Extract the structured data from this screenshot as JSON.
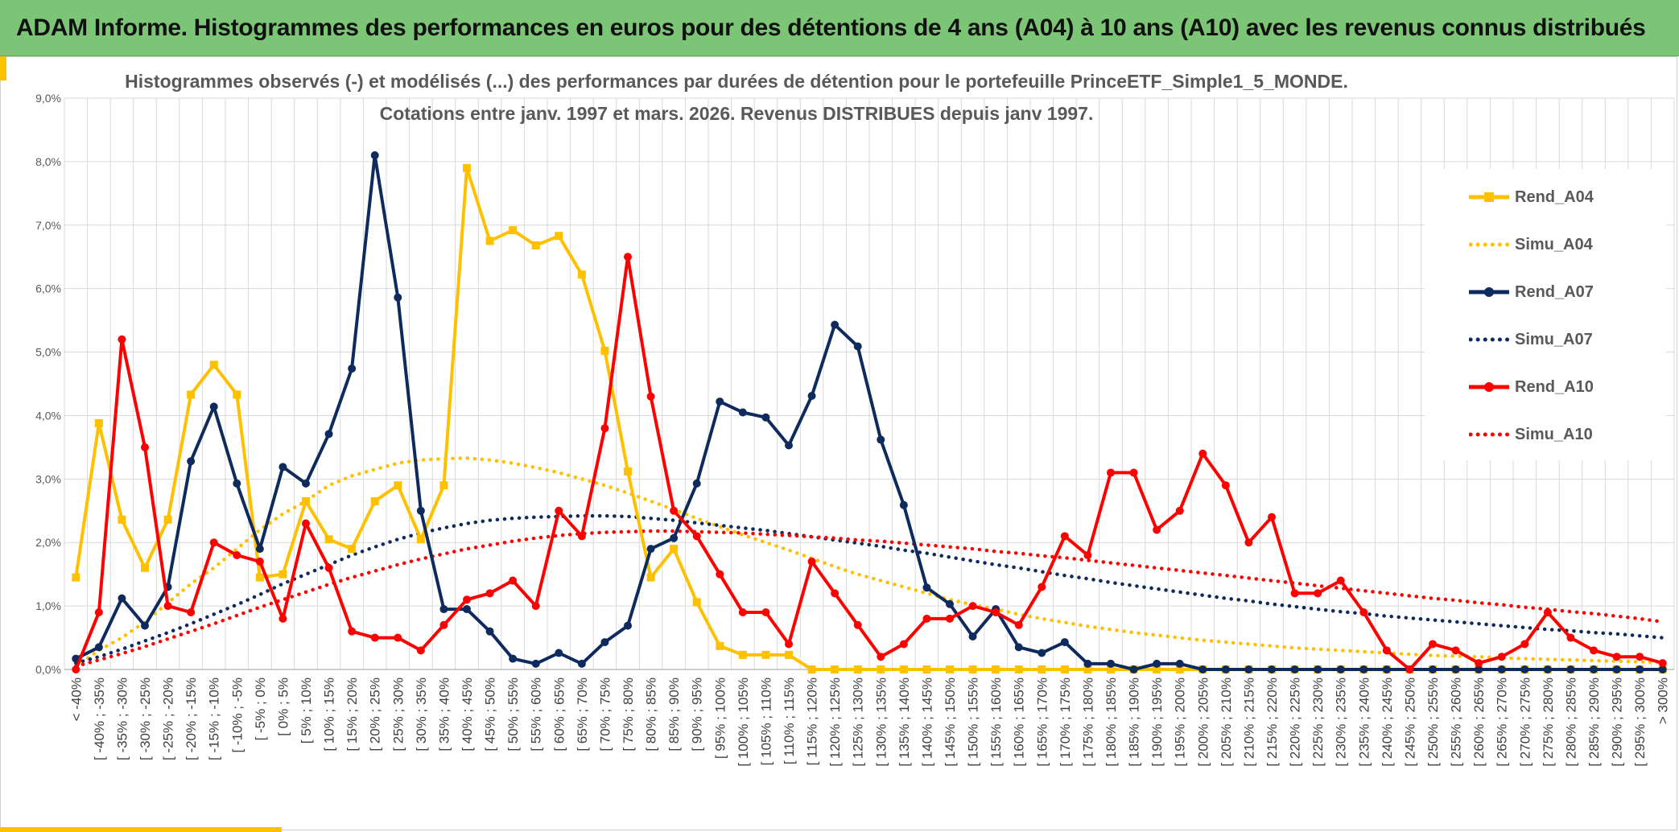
{
  "header": {
    "title": "ADAM Informe. Histogrammes des performances en euros pour des détentions de 4 ans (A04) à 10 ans (A10) avec les revenus connus distribués"
  },
  "chart_data": {
    "type": "line",
    "title": "Histogrammes observés (-) et modélisés (...) des performances par durées de détention pour le portefeuille PrinceETF_Simple1_5_MONDE.",
    "subtitle": "Cotations entre janv. 1997 et mars. 2026. Revenus DISTRIBUES depuis janv 1997.",
    "xlabel": "",
    "ylabel": "",
    "ylim": [
      0,
      9
    ],
    "y_ticks": [
      "0,0%",
      "1,0%",
      "2,0%",
      "3,0%",
      "4,0%",
      "5,0%",
      "6,0%",
      "7,0%",
      "8,0%",
      "9,0%"
    ],
    "grid": true,
    "legend_position": "right",
    "categories": [
      "< -40%",
      "[ -40% ; -35%",
      "[ -35% ; -30%",
      "[ -30% ; -25%",
      "[ -25% ; -20%",
      "[ -20% ; -15%",
      "[ -15% ; -10%",
      "[ -10% ; -5%",
      "[ -5% ; 0%",
      "[ 0% ; 5%",
      "[ 5% ; 10%",
      "[ 10% ; 15%",
      "[ 15% ; 20%",
      "[ 20% ; 25%",
      "[ 25% ; 30%",
      "[ 30% ; 35%",
      "[ 35% ; 40%",
      "[ 40% ; 45%",
      "[ 45% ; 50%",
      "[ 50% ; 55%",
      "[ 55% ; 60%",
      "[ 60% ; 65%",
      "[ 65% ; 70%",
      "[ 70% ; 75%",
      "[ 75% ; 80%",
      "[ 80% ; 85%",
      "[ 85% ; 90%",
      "[ 90% ; 95%",
      "[ 95% ; 100%",
      "[ 100% ; 105%",
      "[ 105% ; 110%",
      "[ 110% ; 115%",
      "[ 115% ; 120%",
      "[ 120% ; 125%",
      "[ 125% ; 130%",
      "[ 130% ; 135%",
      "[ 135% ; 140%",
      "[ 140% ; 145%",
      "[ 145% ; 150%",
      "[ 150% ; 155%",
      "[ 155% ; 160%",
      "[ 160% ; 165%",
      "[ 165% ; 170%",
      "[ 170% ; 175%",
      "[ 175% ; 180%",
      "[ 180% ; 185%",
      "[ 185% ; 190%",
      "[ 190% ; 195%",
      "[ 195% ; 200%",
      "[ 200% ; 205%",
      "[ 205% ; 210%",
      "[ 210% ; 215%",
      "[ 215% ; 220%",
      "[ 220% ; 225%",
      "[ 225% ; 230%",
      "[ 230% ; 235%",
      "[ 235% ; 240%",
      "[ 240% ; 245%",
      "[ 245% ; 250%",
      "[ 250% ; 255%",
      "[ 255% ; 260%",
      "[ 260% ; 265%",
      "[ 265% ; 270%",
      "[ 270% ; 275%",
      "[ 275% ; 280%",
      "[ 280% ; 285%",
      "[ 285% ; 290%",
      "[ 290% ; 295%",
      "[ 295% ; 300%",
      "> 300%"
    ],
    "series": [
      {
        "name": "Rend_A04",
        "color": "#ffc000",
        "style": "solid",
        "marker": "square",
        "values": [
          1.45,
          3.88,
          2.36,
          1.6,
          2.36,
          4.33,
          4.8,
          4.33,
          1.45,
          1.5,
          2.65,
          2.05,
          1.9,
          2.65,
          2.9,
          2.05,
          2.9,
          7.9,
          6.75,
          6.92,
          6.68,
          6.83,
          6.22,
          5.02,
          3.12,
          1.45,
          1.9,
          1.06,
          0.37,
          0.23,
          0.23,
          0.23,
          0,
          0,
          0,
          0,
          0,
          0,
          0,
          0,
          0,
          0,
          0,
          0,
          0,
          0,
          0,
          0,
          0,
          0,
          0,
          0,
          0,
          0,
          0,
          0,
          0,
          0,
          0,
          0,
          0,
          0,
          0,
          0,
          0,
          0,
          0,
          0,
          0,
          0
        ]
      },
      {
        "name": "Simu_A04",
        "color": "#ffc000",
        "style": "dotted",
        "marker": "none",
        "values": [
          0.05,
          0.3,
          0.5,
          0.75,
          1.05,
          1.35,
          1.6,
          1.9,
          2.2,
          2.45,
          2.65,
          2.9,
          3.05,
          3.15,
          3.25,
          3.3,
          3.32,
          3.33,
          3.3,
          3.25,
          3.18,
          3.1,
          3.0,
          2.9,
          2.78,
          2.65,
          2.52,
          2.38,
          2.25,
          2.12,
          2.0,
          1.88,
          1.75,
          1.62,
          1.5,
          1.4,
          1.3,
          1.2,
          1.1,
          1.02,
          0.95,
          0.87,
          0.8,
          0.74,
          0.68,
          0.63,
          0.58,
          0.54,
          0.5,
          0.46,
          0.43,
          0.4,
          0.37,
          0.34,
          0.32,
          0.3,
          0.28,
          0.26,
          0.24,
          0.22,
          0.21,
          0.2,
          0.18,
          0.17,
          0.16,
          0.15,
          0.14,
          0.13,
          0.12,
          0.11
        ]
      },
      {
        "name": "Rend_A07",
        "color": "#0f2a5c",
        "style": "solid",
        "marker": "circle",
        "values": [
          0.17,
          0.35,
          1.12,
          0.69,
          1.3,
          3.28,
          4.14,
          2.93,
          1.9,
          3.19,
          2.93,
          3.71,
          4.74,
          8.1,
          5.86,
          2.5,
          0.95,
          0.95,
          0.6,
          0.17,
          0.09,
          0.26,
          0.09,
          0.43,
          0.69,
          1.9,
          2.07,
          2.93,
          4.22,
          4.05,
          3.97,
          3.53,
          4.31,
          5.43,
          5.09,
          3.62,
          2.59,
          1.29,
          1.03,
          0.52,
          0.95,
          0.35,
          0.26,
          0.43,
          0.09,
          0.09,
          0,
          0.09,
          0.09,
          0,
          0,
          0,
          0,
          0,
          0,
          0,
          0,
          0,
          0,
          0,
          0,
          0,
          0,
          0,
          0,
          0,
          0,
          0,
          0,
          0
        ]
      },
      {
        "name": "Simu_A07",
        "color": "#0f2a5c",
        "style": "dotted",
        "marker": "none",
        "values": [
          0.1,
          0.2,
          0.32,
          0.45,
          0.58,
          0.72,
          0.87,
          1.02,
          1.18,
          1.35,
          1.5,
          1.65,
          1.8,
          1.93,
          2.05,
          2.15,
          2.23,
          2.3,
          2.35,
          2.38,
          2.4,
          2.41,
          2.42,
          2.42,
          2.41,
          2.38,
          2.35,
          2.31,
          2.27,
          2.23,
          2.19,
          2.14,
          2.09,
          2.04,
          1.99,
          1.94,
          1.88,
          1.83,
          1.77,
          1.71,
          1.65,
          1.6,
          1.54,
          1.48,
          1.43,
          1.37,
          1.32,
          1.27,
          1.22,
          1.17,
          1.12,
          1.08,
          1.03,
          0.99,
          0.95,
          0.91,
          0.88,
          0.84,
          0.81,
          0.78,
          0.75,
          0.72,
          0.69,
          0.66,
          0.63,
          0.61,
          0.58,
          0.56,
          0.53,
          0.5
        ]
      },
      {
        "name": "Rend_A10",
        "color": "#ff0000",
        "style": "solid",
        "marker": "circle",
        "values": [
          0,
          0.9,
          5.2,
          3.5,
          1.0,
          0.9,
          2.0,
          1.8,
          1.7,
          0.8,
          2.3,
          1.6,
          0.6,
          0.5,
          0.5,
          0.3,
          0.7,
          1.1,
          1.2,
          1.4,
          1.0,
          2.5,
          2.1,
          3.8,
          6.5,
          4.3,
          2.5,
          2.1,
          1.5,
          0.9,
          0.9,
          0.4,
          1.7,
          1.2,
          0.7,
          0.2,
          0.4,
          0.8,
          0.8,
          1.0,
          0.9,
          0.7,
          1.3,
          2.1,
          1.8,
          3.1,
          3.1,
          2.2,
          2.5,
          3.4,
          2.9,
          2.0,
          2.4,
          1.2,
          1.2,
          1.4,
          0.9,
          0.3,
          0,
          0.4,
          0.3,
          0.1,
          0.2,
          0.4,
          0.9,
          0.5,
          0.3,
          0.2,
          0.2,
          0.1
        ]
      },
      {
        "name": "Simu_A10",
        "color": "#ff0000",
        "style": "dotted",
        "marker": "none",
        "values": [
          0.05,
          0.15,
          0.25,
          0.36,
          0.48,
          0.6,
          0.72,
          0.85,
          0.98,
          1.1,
          1.22,
          1.34,
          1.45,
          1.55,
          1.65,
          1.74,
          1.82,
          1.9,
          1.96,
          2.02,
          2.07,
          2.11,
          2.14,
          2.16,
          2.17,
          2.18,
          2.18,
          2.17,
          2.16,
          2.15,
          2.13,
          2.11,
          2.09,
          2.07,
          2.04,
          2.02,
          1.99,
          1.96,
          1.93,
          1.9,
          1.86,
          1.83,
          1.79,
          1.76,
          1.72,
          1.68,
          1.64,
          1.6,
          1.56,
          1.52,
          1.48,
          1.44,
          1.4,
          1.36,
          1.32,
          1.28,
          1.24,
          1.2,
          1.16,
          1.12,
          1.09,
          1.05,
          1.02,
          0.98,
          0.95,
          0.91,
          0.88,
          0.84,
          0.8,
          0.75
        ]
      }
    ]
  }
}
